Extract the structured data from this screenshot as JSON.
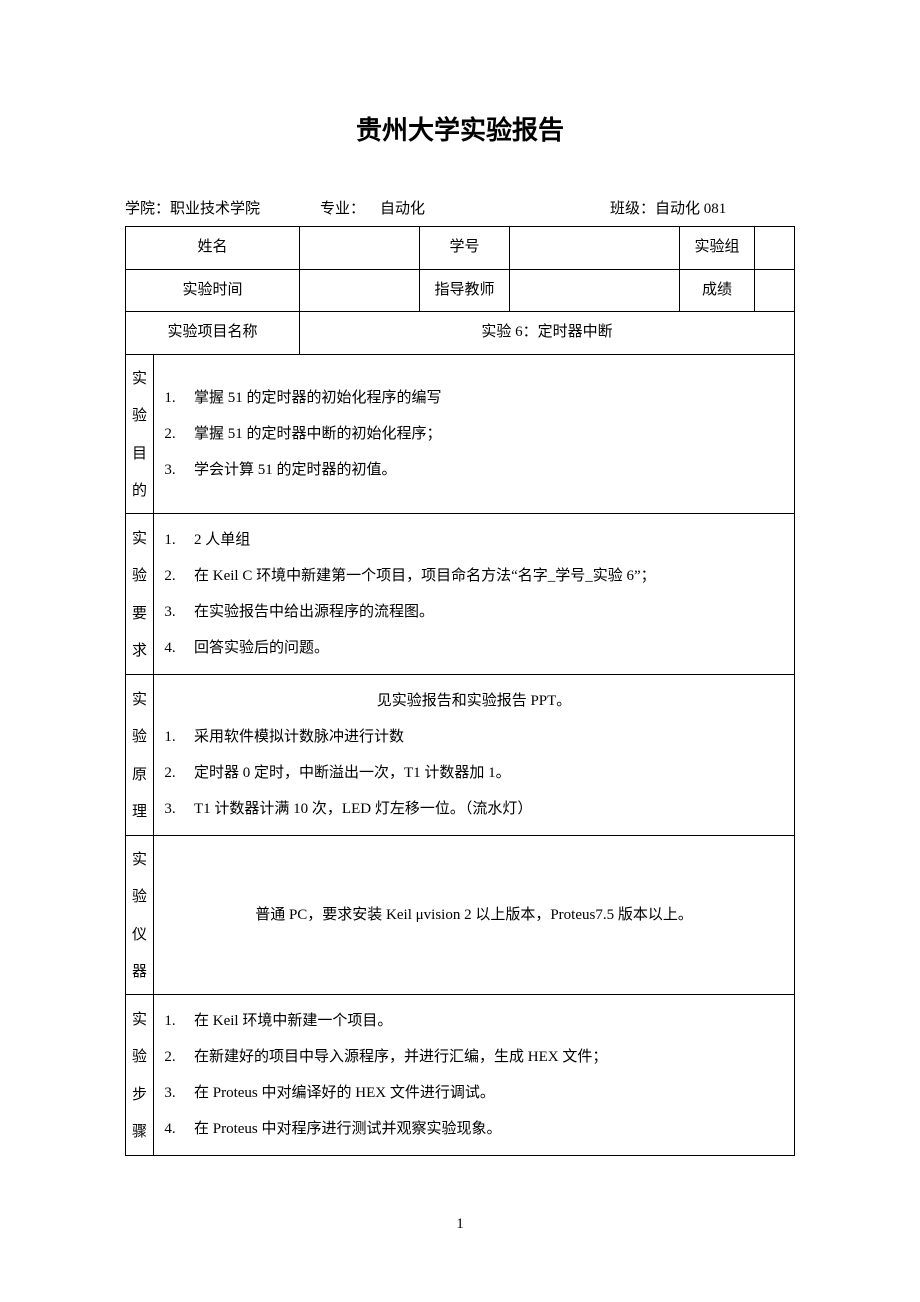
{
  "title": "贵州大学实验报告",
  "header": {
    "college_label": "学院：",
    "college_value": "职业技术学院",
    "major_label": "专业：",
    "major_value": "自动化",
    "class_label": "班级：",
    "class_value": "自动化 081"
  },
  "row1": {
    "name_label": "姓名",
    "name_value": "",
    "studentno_label": "学号",
    "studentno_value": "",
    "group_label": "实验组",
    "group_value": ""
  },
  "row2": {
    "time_label": "实验时间",
    "time_value": "",
    "teacher_label": "指导教师",
    "teacher_value": "",
    "score_label": "成绩",
    "score_value": ""
  },
  "row3": {
    "project_label": "实验项目名称",
    "project_value": "实验 6：定时器中断"
  },
  "sections": {
    "purpose": {
      "label_chars": [
        "实",
        "验",
        "目",
        "的"
      ],
      "items": [
        "掌握 51 的定时器的初始化程序的编写",
        "掌握 51 的定时器中断的初始化程序；",
        "学会计算 51 的定时器的初值。"
      ]
    },
    "requirements": {
      "label_chars": [
        "实",
        "验",
        "要",
        "求"
      ],
      "items": [
        "2 人单组",
        "在 Keil C 环境中新建第一个项目，项目命名方法“名字_学号_实验 6”；",
        "在实验报告中给出源程序的流程图。",
        "回答实验后的问题。"
      ]
    },
    "principle": {
      "label_chars": [
        "实",
        "验",
        "原",
        "理"
      ],
      "pre_text": "见实验报告和实验报告 PPT。",
      "items": [
        "采用软件模拟计数脉冲进行计数",
        "定时器 0 定时，中断溢出一次，T1 计数器加 1。",
        "T1 计数器计满 10 次，LED 灯左移一位。（流水灯）"
      ]
    },
    "instruments": {
      "label_chars": [
        "实",
        "验",
        "仪",
        "器"
      ],
      "text": "普通 PC，要求安装 Keil  μvision 2 以上版本，Proteus7.5 版本以上。"
    },
    "steps": {
      "label_chars": [
        "实",
        "验",
        "步",
        "骤"
      ],
      "items": [
        "在 Keil 环境中新建一个项目。",
        "在新建好的项目中导入源程序，并进行汇编，生成 HEX 文件；",
        "在 Proteus 中对编译好的 HEX 文件进行调试。",
        "在 Proteus 中对程序进行测试并观察实验现象。"
      ]
    }
  },
  "page_number": "1"
}
